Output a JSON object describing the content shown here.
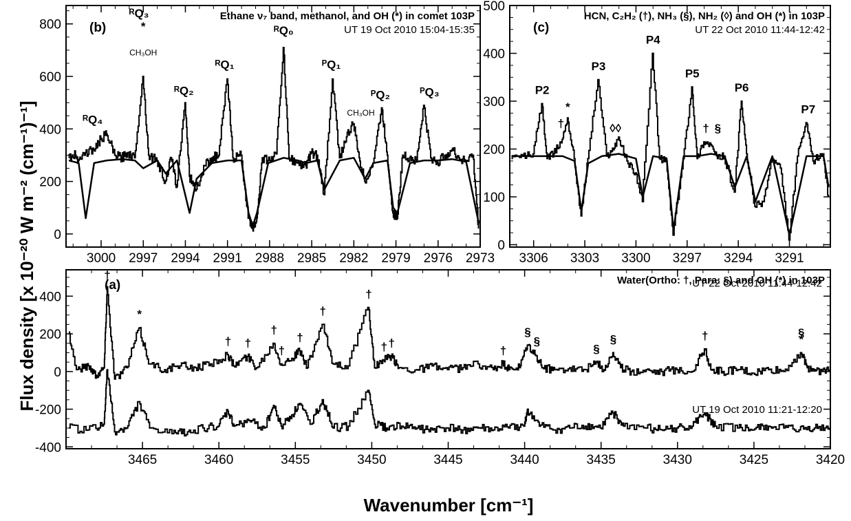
{
  "figure": {
    "ylabel": "Flux density [x 10⁻²⁰ W m⁻² (cm⁻¹)⁻¹]",
    "xlabel": "Wavenumber [cm⁻¹]"
  },
  "chart_data": [
    {
      "id": "b",
      "panel_label": "(b)",
      "type": "line",
      "title": "Ethane ν₇ band, methanol, and OH (*) in comet 103P",
      "subtitle": "UT 19 Oct 2010 15:04-15:35",
      "xlim": [
        3002.5,
        2973
      ],
      "ylim": [
        -50,
        870
      ],
      "xticks": [
        3000,
        2997,
        2994,
        2991,
        2988,
        2985,
        2982,
        2979,
        2976,
        2973
      ],
      "yticks": [
        0,
        200,
        400,
        600,
        800
      ],
      "baseline": 280,
      "series": [
        {
          "kind": "observed",
          "x": [
            3002.3,
            3001.8,
            3001.6,
            3001.1,
            3000.5,
            3000.0,
            2999.6,
            2999.0,
            2998.5,
            2998.1,
            2997.6,
            2997.0,
            2996.6,
            2996.0,
            2995.4,
            2995.0,
            2994.6,
            2994.0,
            2993.7,
            2993.2,
            2992.6,
            2992.1,
            2991.6,
            2991.0,
            2990.6,
            2990.0,
            2989.5,
            2989.2,
            2988.9,
            2988.5,
            2988.1,
            2987.5,
            2987.0,
            2986.6,
            2986.0,
            2985.4,
            2985.0,
            2984.6,
            2984.1,
            2983.5,
            2983.0,
            2982.5,
            2982.0,
            2981.6,
            2981.2,
            2980.6,
            2980.0,
            2979.6,
            2979.2,
            2978.9,
            2978.5,
            2978.0,
            2977.5,
            2977.0,
            2976.5,
            2976.0,
            2975.5,
            2975.0,
            2974.5,
            2974.0,
            2973.5,
            2973.1
          ],
          "y": [
            290,
            300,
            280,
            310,
            320,
            360,
            380,
            300,
            290,
            310,
            290,
            600,
            300,
            280,
            200,
            290,
            180,
            500,
            220,
            170,
            260,
            290,
            300,
            590,
            290,
            300,
            60,
            20,
            60,
            290,
            280,
            305,
            710,
            290,
            270,
            260,
            310,
            300,
            150,
            590,
            290,
            370,
            420,
            290,
            200,
            270,
            480,
            300,
            80,
            60,
            300,
            290,
            280,
            490,
            290,
            270,
            300,
            320,
            290,
            280,
            300,
            20
          ]
        },
        {
          "kind": "model",
          "x": [
            3002.3,
            3001.6,
            3001.1,
            3000.5,
            2999.6,
            2998.5,
            2997.6,
            2997.0,
            2996.0,
            2995.4,
            2994.6,
            2993.7,
            2993.2,
            2992.1,
            2991.0,
            2990.0,
            2989.5,
            2989.2,
            2988.9,
            2988.1,
            2987.0,
            2986.0,
            2985.4,
            2984.6,
            2984.1,
            2983.0,
            2982.0,
            2981.2,
            2980.6,
            2979.6,
            2979.2,
            2978.9,
            2978.0,
            2977.0,
            2976.0,
            2975.0,
            2974.0,
            2973.1
          ],
          "y": [
            280,
            270,
            60,
            270,
            280,
            285,
            280,
            250,
            280,
            230,
            280,
            80,
            210,
            270,
            280,
            280,
            80,
            30,
            80,
            270,
            290,
            280,
            270,
            280,
            170,
            280,
            290,
            210,
            270,
            280,
            100,
            80,
            270,
            280,
            280,
            285,
            275,
            40
          ]
        }
      ],
      "annotations": [
        {
          "text": "ᴿQ₄",
          "x": 3000.6,
          "y": 420
        },
        {
          "text": "ᴿQ₃",
          "x": 2997.3,
          "y": 825
        },
        {
          "text": "*",
          "x": 2997.0,
          "y": 775
        },
        {
          "text": "CH₃OH",
          "x": 2997.0,
          "y": 680
        },
        {
          "text": "ᴿQ₂",
          "x": 2994.1,
          "y": 530
        },
        {
          "text": "ᴿQ₁",
          "x": 2991.2,
          "y": 630
        },
        {
          "text": "ᴿQ₀",
          "x": 2987.0,
          "y": 760
        },
        {
          "text": "ᴾQ₁",
          "x": 2983.6,
          "y": 630
        },
        {
          "text": "CH₃OH",
          "x": 2981.5,
          "y": 450
        },
        {
          "text": "ᴾQ₂",
          "x": 2980.1,
          "y": 515
        },
        {
          "text": "ᴾQ₃",
          "x": 2976.6,
          "y": 525
        }
      ]
    },
    {
      "id": "c",
      "panel_label": "(c)",
      "type": "line",
      "title": "HCN, C₂H₂ (†), NH₃ (§), NH₂ (◊) and OH (*) in 103P",
      "subtitle": "UT 22 Oct 2010  11:44-12:42",
      "xlim": [
        3307.4,
        3288.6
      ],
      "ylim": [
        -5,
        500
      ],
      "xticks": [
        3306,
        3303,
        3300,
        3297,
        3294,
        3291
      ],
      "yticks": [
        0,
        100,
        200,
        300,
        400,
        500
      ],
      "baseline": 185,
      "series": [
        {
          "kind": "observed",
          "x": [
            3307.3,
            3306.6,
            3306.0,
            3305.5,
            3305.2,
            3304.8,
            3304.3,
            3304.0,
            3303.6,
            3303.2,
            3302.8,
            3302.2,
            3301.7,
            3301.4,
            3301.0,
            3300.5,
            3300.0,
            3299.6,
            3299.0,
            3298.6,
            3298.2,
            3297.8,
            3297.2,
            3296.7,
            3296.4,
            3296.0,
            3295.6,
            3295.2,
            3294.8,
            3294.2,
            3293.8,
            3293.5,
            3293.0,
            3292.5,
            3292.0,
            3291.5,
            3291.0,
            3290.5,
            3290.0,
            3289.6,
            3289.0,
            3288.7
          ],
          "y": [
            180,
            185,
            190,
            295,
            180,
            190,
            220,
            265,
            180,
            60,
            180,
            345,
            185,
            195,
            225,
            175,
            150,
            90,
            400,
            180,
            175,
            20,
            180,
            330,
            180,
            215,
            210,
            180,
            185,
            110,
            300,
            190,
            80,
            90,
            180,
            160,
            10,
            185,
            255,
            175,
            190,
            100
          ]
        },
        {
          "kind": "model",
          "x": [
            3307.3,
            3305.5,
            3304.3,
            3303.6,
            3303.2,
            3302.8,
            3302.0,
            3301.0,
            3300.0,
            3299.6,
            3299.0,
            3298.2,
            3297.8,
            3297.2,
            3296.4,
            3295.6,
            3294.8,
            3294.2,
            3293.5,
            3293.0,
            3292.0,
            3291.0,
            3290.0,
            3289.0,
            3288.7
          ],
          "y": [
            185,
            185,
            185,
            175,
            70,
            170,
            185,
            190,
            180,
            100,
            185,
            180,
            30,
            185,
            185,
            190,
            185,
            120,
            185,
            90,
            185,
            20,
            185,
            185,
            120
          ]
        }
      ],
      "annotations": [
        {
          "text": "P2",
          "x": 3305.5,
          "y": 315
        },
        {
          "text": "*",
          "x": 3304.0,
          "y": 280
        },
        {
          "text": "†",
          "x": 3304.4,
          "y": 245
        },
        {
          "text": "P3",
          "x": 3302.2,
          "y": 365
        },
        {
          "text": "◊◊",
          "x": 3301.2,
          "y": 235
        },
        {
          "text": "P4",
          "x": 3299.0,
          "y": 420
        },
        {
          "text": "P5",
          "x": 3296.7,
          "y": 350
        },
        {
          "text": "†",
          "x": 3295.9,
          "y": 235
        },
        {
          "text": "§",
          "x": 3295.2,
          "y": 235
        },
        {
          "text": "P6",
          "x": 3293.8,
          "y": 320
        },
        {
          "text": "P7",
          "x": 3289.9,
          "y": 275
        }
      ]
    },
    {
      "id": "a",
      "panel_label": "(a)",
      "type": "line",
      "title": "Water(Ortho: †, Para: §) and OH (*) in 103P",
      "xlim": [
        3470,
        3420
      ],
      "ylim": [
        -410,
        540
      ],
      "xticks": [
        3465,
        3460,
        3455,
        3450,
        3445,
        3440,
        3435,
        3430,
        3425,
        3420
      ],
      "yticks": [
        -400,
        -200,
        0,
        200,
        400
      ],
      "series": [
        {
          "name": "UT 22 Oct 2010  11:44-12:42",
          "kind": "observed",
          "x": [
            3469.8,
            3469.3,
            3468.5,
            3468.0,
            3467.5,
            3467.3,
            3466.8,
            3466.0,
            3465.2,
            3464.5,
            3463.5,
            3462.5,
            3461.5,
            3460.5,
            3459.4,
            3459.0,
            3458.1,
            3457.5,
            3456.4,
            3455.9,
            3455.2,
            3454.7,
            3454.2,
            3453.2,
            3452.5,
            3451.5,
            3450.2,
            3449.8,
            3449.2,
            3448.7,
            3448.2,
            3447.0,
            3446.0,
            3445.0,
            3444.0,
            3443.0,
            3442.0,
            3441.4,
            3441.0,
            3440.3,
            3439.8,
            3439.3,
            3438.8,
            3438.0,
            3437.0,
            3436.0,
            3435.3,
            3434.8,
            3434.2,
            3433.7,
            3433.0,
            3432.0,
            3431.0,
            3430.0,
            3429.0,
            3428.2,
            3427.8,
            3427.0,
            3426.0,
            3425.0,
            3424.0,
            3423.0,
            3421.9,
            3421.5,
            3421.0,
            3420.5,
            3420.0
          ],
          "y": [
            210,
            10,
            30,
            -20,
            20,
            450,
            -40,
            20,
            230,
            40,
            10,
            30,
            20,
            40,
            90,
            30,
            80,
            20,
            150,
            40,
            70,
            110,
            20,
            250,
            40,
            30,
            340,
            20,
            60,
            80,
            20,
            10,
            30,
            10,
            20,
            40,
            10,
            40,
            10,
            20,
            140,
            90,
            20,
            10,
            20,
            10,
            50,
            10,
            100,
            20,
            0,
            10,
            0,
            10,
            0,
            120,
            10,
            0,
            10,
            -10,
            10,
            0,
            100,
            20,
            10,
            0,
            10
          ]
        },
        {
          "name": "UT 19 Oct 2010  11:21-12:20",
          "kind": "observed",
          "x": [
            3469.8,
            3468.5,
            3467.5,
            3467.3,
            3466.8,
            3466.0,
            3465.2,
            3464.5,
            3463.0,
            3462.0,
            3461.0,
            3460.0,
            3459.4,
            3459.0,
            3458.0,
            3457.0,
            3456.4,
            3455.9,
            3455.2,
            3454.7,
            3454.0,
            3453.2,
            3452.5,
            3451.5,
            3450.2,
            3449.8,
            3449.0,
            3448.0,
            3447.0,
            3446.0,
            3445.0,
            3444.0,
            3443.0,
            3442.0,
            3441.0,
            3440.0,
            3439.8,
            3439.0,
            3438.0,
            3437.0,
            3436.0,
            3435.0,
            3434.2,
            3433.5,
            3432.0,
            3431.0,
            3430.0,
            3429.0,
            3428.2,
            3427.5,
            3426.0,
            3425.0,
            3424.0,
            3423.0,
            3422.0,
            3421.0,
            3420.0
          ],
          "y": [
            -300,
            -310,
            -280,
            10,
            -320,
            -300,
            -160,
            -300,
            -330,
            -320,
            -300,
            -290,
            -210,
            -290,
            -260,
            -300,
            -180,
            -290,
            -230,
            -170,
            -280,
            -150,
            -300,
            -290,
            -100,
            -280,
            -300,
            -290,
            -300,
            -310,
            -300,
            -310,
            -300,
            -310,
            -300,
            -290,
            -200,
            -290,
            -310,
            -300,
            -290,
            -300,
            -220,
            -290,
            -300,
            -310,
            -300,
            -290,
            -220,
            -290,
            -300,
            -310,
            -290,
            -300,
            -310,
            -300,
            -300
          ]
        }
      ],
      "annotations": [
        {
          "text": "†",
          "x": 3467.3,
          "y": 490
        },
        {
          "text": "*",
          "x": 3465.2,
          "y": 285
        },
        {
          "text": "†",
          "x": 3459.4,
          "y": 140
        },
        {
          "text": "†",
          "x": 3458.1,
          "y": 130
        },
        {
          "text": "†",
          "x": 3456.4,
          "y": 200
        },
        {
          "text": "†",
          "x": 3455.9,
          "y": 90
        },
        {
          "text": "†",
          "x": 3454.7,
          "y": 160
        },
        {
          "text": "†",
          "x": 3453.2,
          "y": 300
        },
        {
          "text": "†",
          "x": 3450.2,
          "y": 390
        },
        {
          "text": "†",
          "x": 3449.2,
          "y": 110
        },
        {
          "text": "†",
          "x": 3448.7,
          "y": 130
        },
        {
          "text": "†",
          "x": 3441.4,
          "y": 90
        },
        {
          "text": "§",
          "x": 3439.8,
          "y": 190
        },
        {
          "text": "§",
          "x": 3439.2,
          "y": 140
        },
        {
          "text": "§",
          "x": 3435.3,
          "y": 100
        },
        {
          "text": "§",
          "x": 3434.2,
          "y": 150
        },
        {
          "text": "†",
          "x": 3428.2,
          "y": 170
        },
        {
          "text": "§",
          "x": 3421.9,
          "y": 185
        },
        {
          "text": "*",
          "x": 3421.9,
          "y": 150
        }
      ]
    }
  ]
}
